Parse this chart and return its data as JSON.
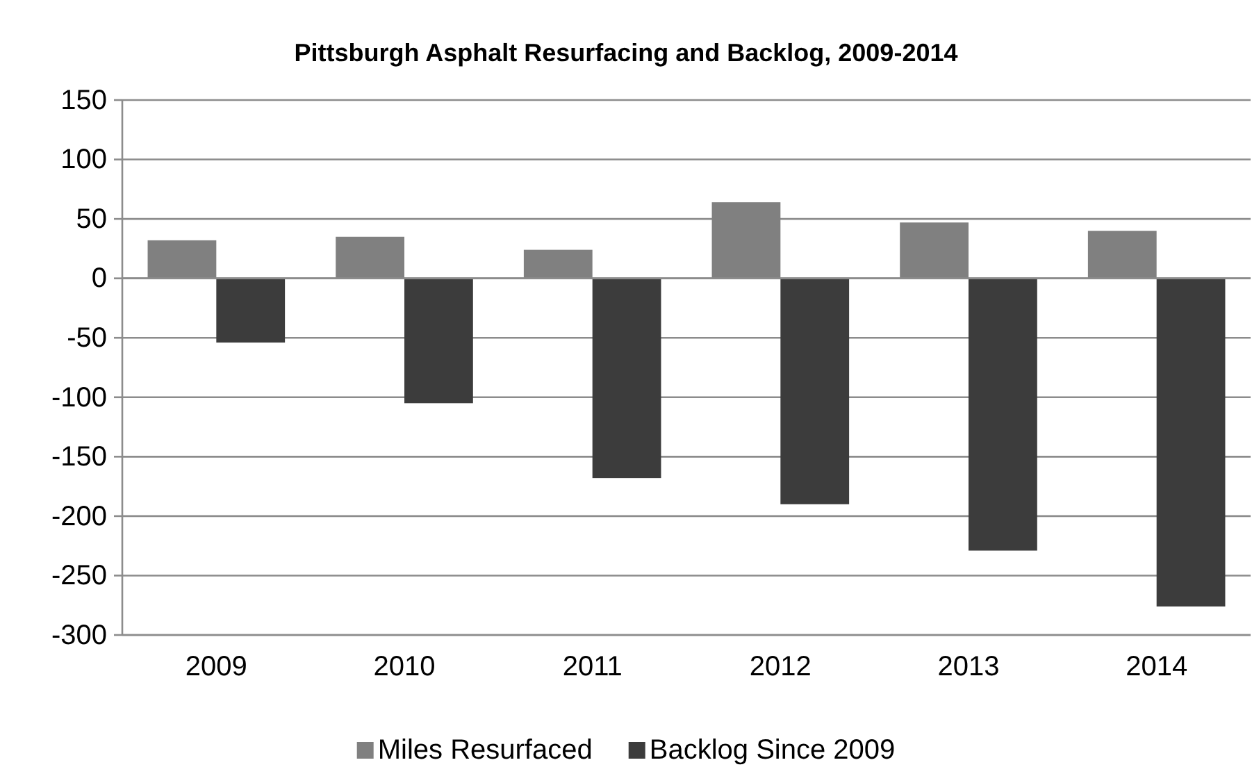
{
  "chart_data": {
    "type": "bar",
    "title": "Pittsburgh Asphalt Resurfacing and Backlog, 2009-2014",
    "categories": [
      "2009",
      "2010",
      "2011",
      "2012",
      "2013",
      "2014"
    ],
    "series": [
      {
        "name": "Miles Resurfaced",
        "color": "#808080",
        "values": [
          32,
          35,
          24,
          64,
          47,
          40
        ]
      },
      {
        "name": "Backlog Since 2009",
        "color": "#3c3c3c",
        "values": [
          -54,
          -105,
          -168,
          -190,
          -229,
          -276
        ]
      }
    ],
    "ylim": [
      -300,
      150
    ],
    "yticks": [
      -300,
      -250,
      -200,
      -150,
      -100,
      -50,
      0,
      50,
      100,
      150
    ],
    "grid": "y",
    "legend": "bottom"
  }
}
